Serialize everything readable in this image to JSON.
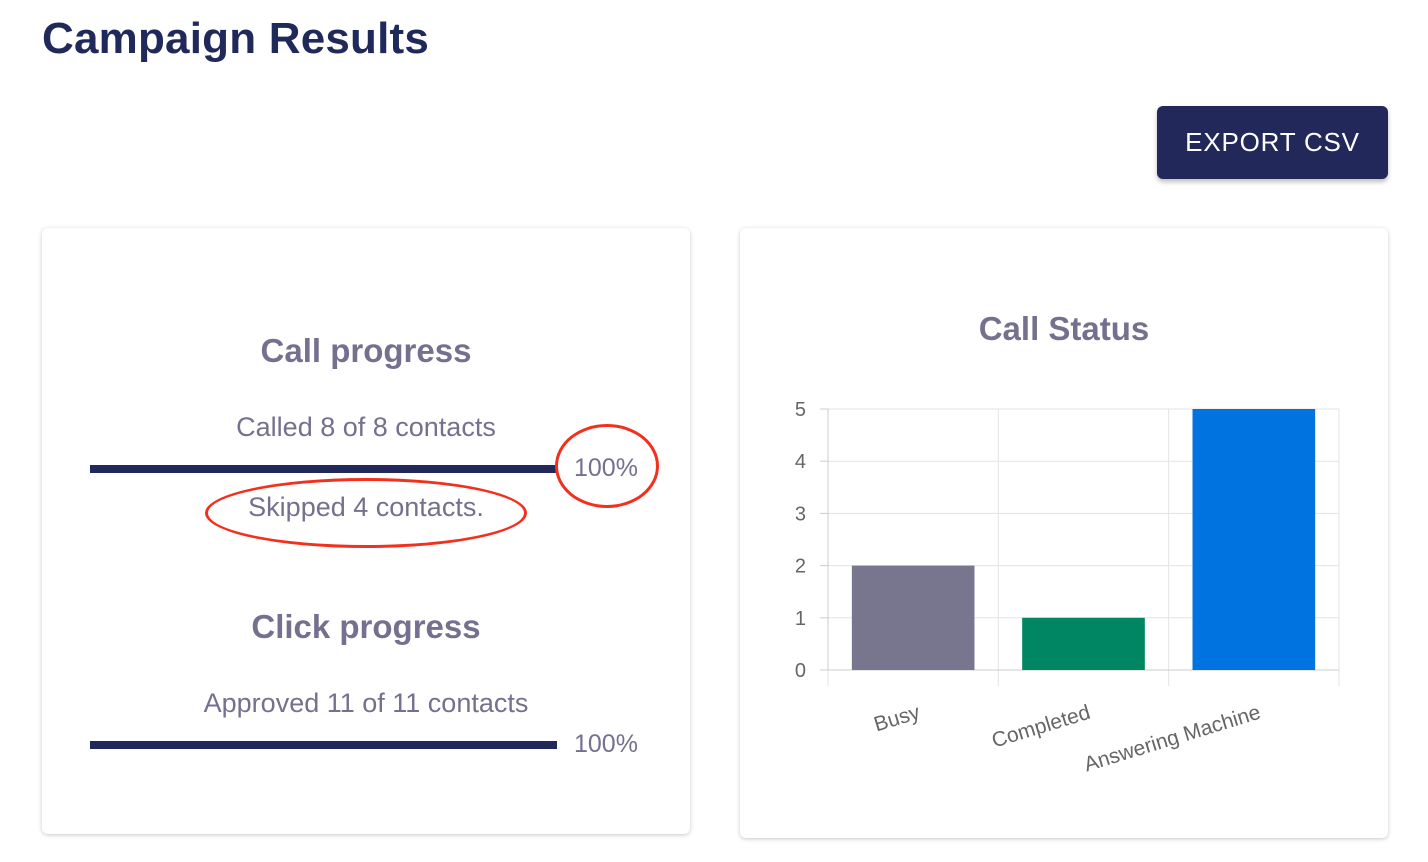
{
  "page": {
    "title": "Campaign Results"
  },
  "toolbar": {
    "export_label": "EXPORT CSV"
  },
  "call_progress": {
    "title": "Call progress",
    "summary": "Called 8 of 8 contacts",
    "percent_label": "100%",
    "progress": 1.0,
    "skipped": "Skipped 4 contacts."
  },
  "click_progress": {
    "title": "Click progress",
    "summary": "Approved 11 of 11 contacts",
    "percent_label": "100%",
    "progress": 1.0
  },
  "annotations": {
    "color": "#f2301d"
  },
  "chart_data": {
    "type": "bar",
    "title": "Call Status",
    "categories": [
      "Busy",
      "Completed",
      "Answering Machine"
    ],
    "values": [
      2,
      1,
      5
    ],
    "colors": [
      "#78758f",
      "#008662",
      "#0073e0"
    ],
    "ylim": [
      0,
      5
    ],
    "yticks": [
      0,
      1,
      2,
      3,
      4,
      5
    ],
    "grid": true,
    "xlabel": "",
    "ylabel": ""
  }
}
